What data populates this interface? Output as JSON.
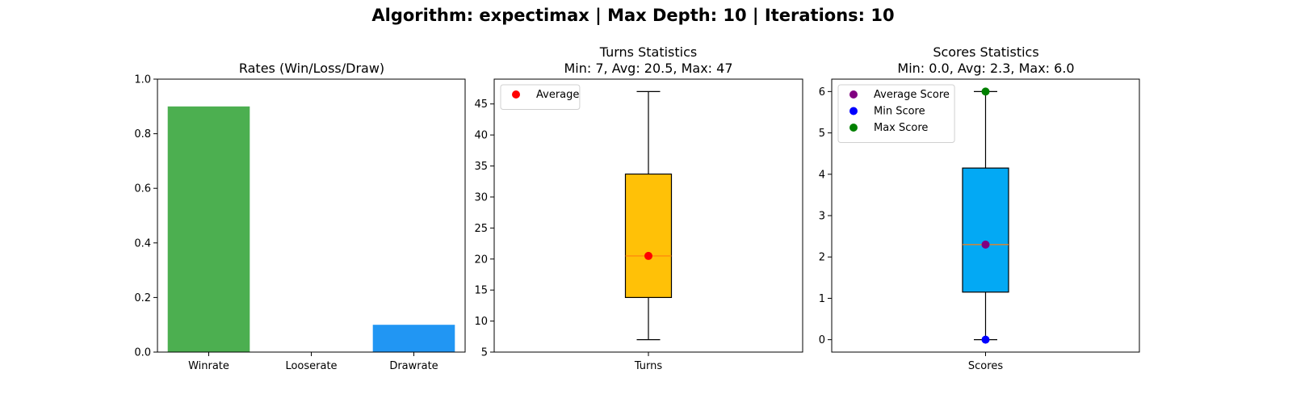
{
  "suptitle": "Algorithm: expectimax | Max Depth: 10 | Iterations: 10",
  "chart_data": [
    {
      "type": "bar",
      "title": "Rates (Win/Loss/Draw)",
      "categories": [
        "Winrate",
        "Looserate",
        "Drawrate"
      ],
      "values": [
        0.9,
        0.0,
        0.1
      ],
      "colors": [
        "#4caf50",
        "#f44336",
        "#2196f3"
      ],
      "ylim": [
        0,
        1.0
      ],
      "yticks": [
        0.0,
        0.2,
        0.4,
        0.6,
        0.8,
        1.0
      ],
      "ytick_labels": [
        "0.0",
        "0.2",
        "0.4",
        "0.6",
        "0.8",
        "1.0"
      ],
      "grid": false
    },
    {
      "type": "box",
      "title": "Turns Statistics",
      "subtitle": "Min: 7, Avg: 20.5, Max: 47",
      "category": "Turns",
      "box": {
        "whisker_low": 7,
        "q1": 13.8,
        "median": 20.5,
        "q3": 33.7,
        "whisker_high": 47
      },
      "box_color": "#ffc107",
      "median_color": "#ff7f0e",
      "ylim": [
        5,
        49
      ],
      "yticks": [
        5,
        10,
        15,
        20,
        25,
        30,
        35,
        40,
        45
      ],
      "ytick_labels": [
        "5",
        "10",
        "15",
        "20",
        "25",
        "30",
        "35",
        "40",
        "45"
      ],
      "points": [
        {
          "label": "Average",
          "value": 20.5,
          "color": "#ff0000"
        }
      ],
      "legend": [
        "Average"
      ],
      "legend_position": "top-left",
      "grid": false
    },
    {
      "type": "box",
      "title": "Scores Statistics",
      "subtitle": "Min: 0.0, Avg: 2.3, Max: 6.0",
      "category": "Scores",
      "box": {
        "whisker_low": 0.0,
        "q1": 1.15,
        "median": 2.3,
        "q3": 4.15,
        "whisker_high": 6.0
      },
      "box_color": "#03a9f4",
      "median_color": "#ff7f0e",
      "ylim": [
        -0.3,
        6.3
      ],
      "yticks": [
        0,
        1,
        2,
        3,
        4,
        5,
        6
      ],
      "ytick_labels": [
        "0",
        "1",
        "2",
        "3",
        "4",
        "5",
        "6"
      ],
      "points": [
        {
          "label": "Average Score",
          "value": 2.3,
          "color": "#800080"
        },
        {
          "label": "Min Score",
          "value": 0.0,
          "color": "#0000ff"
        },
        {
          "label": "Max Score",
          "value": 6.0,
          "color": "#008000"
        }
      ],
      "legend": [
        "Average Score",
        "Min Score",
        "Max Score"
      ],
      "legend_position": "top-left",
      "grid": false
    }
  ]
}
